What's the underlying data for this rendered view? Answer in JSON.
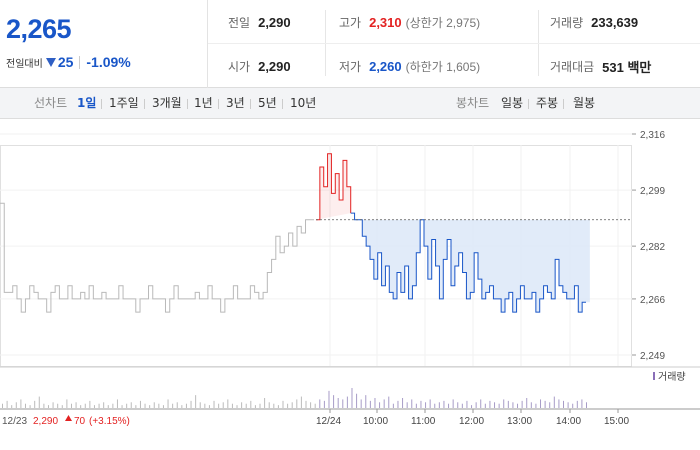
{
  "quote": {
    "price": "2,265",
    "change_label": "전일대비",
    "change_amount": "25",
    "change_pct": "-1.09%"
  },
  "stats": {
    "prev_close": {
      "label": "전일",
      "value": "2,290"
    },
    "open": {
      "label": "시가",
      "value": "2,290"
    },
    "high": {
      "label": "고가",
      "value": "2,310",
      "sub": "(상한가 2,975)"
    },
    "low": {
      "label": "저가",
      "value": "2,260",
      "sub": "(하한가 1,605)"
    },
    "volume": {
      "label": "거래량",
      "value": "233,639"
    },
    "turnover": {
      "label": "거래대금",
      "value": "531 백만"
    }
  },
  "tabs": {
    "line_label": "선차트",
    "line_items": [
      "1일",
      "1주일",
      "3개월",
      "1년",
      "3년",
      "5년",
      "10년"
    ],
    "active": "1일",
    "candle_label": "봉차트",
    "candle_items": [
      "일봉",
      "주봉",
      "월봉"
    ]
  },
  "colors": {
    "up": "#e32222",
    "down": "#1956c8",
    "prev_day": "#b9b9b9",
    "fill": "#dce8f8"
  },
  "chart_data": {
    "type": "line",
    "y_ticks": [
      "2,316",
      "2,299",
      "2,282",
      "2,266",
      "2,249"
    ],
    "ylim": [
      2249,
      2316
    ],
    "reference_value": 2290,
    "x_ticks": [
      "12/24",
      "10:00",
      "11:00",
      "12:00",
      "13:00",
      "14:00",
      "15:00"
    ],
    "prev_day_label": "12/23",
    "prev_day_close": "2,290",
    "prev_day_change": "70",
    "prev_day_change_pct": "(+3.15%)",
    "volume_legend": "거래량",
    "series": [
      {
        "name": "12/23",
        "values": [
          2295,
          2268,
          2268,
          2270,
          2266,
          2262,
          2266,
          2270,
          2268,
          2266,
          2266,
          2262,
          2268,
          2270,
          2266,
          2266,
          2270,
          2266,
          2266,
          2268,
          2266,
          2270,
          2266,
          2266,
          2268,
          2266,
          2266,
          2266,
          2270,
          2266,
          2266,
          2266,
          2262,
          2266,
          2266,
          2270,
          2266,
          2266,
          2266,
          2262,
          2266,
          2270,
          2266,
          2266,
          2266,
          2266,
          2268,
          2266,
          2266,
          2270,
          2266,
          2266,
          2262,
          2266,
          2266,
          2270,
          2266,
          2266,
          2266,
          2270,
          2268,
          2266,
          2268,
          2274,
          2278,
          2285,
          2280,
          2282,
          2286,
          2282,
          2288,
          2286,
          2290,
          2290,
          2290
        ]
      },
      {
        "name": "12/24",
        "values": [
          2290,
          2306,
          2300,
          2310,
          2298,
          2304,
          2296,
          2308,
          2300,
          2292,
          2290,
          2290,
          2285,
          2282,
          2278,
          2272,
          2280,
          2270,
          2276,
          2268,
          2266,
          2274,
          2268,
          2276,
          2266,
          2270,
          2280,
          2290,
          2282,
          2272,
          2284,
          2276,
          2266,
          2278,
          2284,
          2270,
          2276,
          2280,
          2274,
          2266,
          2268,
          2280,
          2272,
          2266,
          2268,
          2270,
          2266,
          2266,
          2262,
          2266,
          2268,
          2262,
          2266,
          2270,
          2266,
          2266,
          2268,
          2262,
          2266,
          2270,
          2268,
          2266,
          2278,
          2270,
          2268,
          2266,
          2266,
          2270,
          2262,
          2265,
          2265
        ]
      }
    ],
    "volume": [
      3,
      5,
      2,
      4,
      6,
      3,
      2,
      5,
      8,
      3,
      2,
      4,
      3,
      2,
      6,
      3,
      4,
      2,
      3,
      5,
      2,
      3,
      4,
      2,
      3,
      6,
      2,
      3,
      4,
      2,
      5,
      3,
      2,
      4,
      3,
      2,
      6,
      3,
      4,
      2,
      3,
      5,
      9,
      4,
      3,
      2,
      5,
      3,
      4,
      6,
      3,
      2,
      4,
      3,
      5,
      2,
      3,
      7,
      4,
      3,
      2,
      5,
      3,
      4,
      6,
      8,
      5,
      4,
      3,
      6,
      5,
      12,
      9,
      7,
      6,
      8,
      14,
      10,
      6,
      9,
      5,
      7,
      4,
      6,
      8,
      3,
      5,
      7,
      4,
      6,
      3,
      5,
      4,
      6,
      3,
      4,
      5,
      3,
      6,
      4,
      3,
      5,
      2,
      4,
      6,
      3,
      5,
      4,
      3,
      6,
      5,
      4,
      3,
      5,
      7,
      4,
      3,
      6,
      5,
      4,
      8,
      6,
      5,
      4,
      3,
      5,
      6,
      4
    ]
  }
}
